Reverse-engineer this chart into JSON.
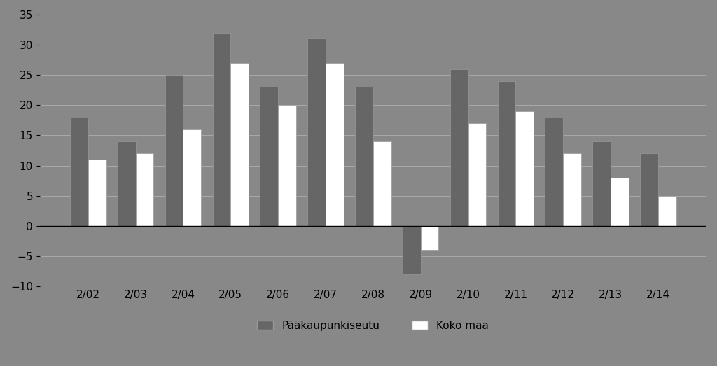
{
  "categories": [
    "2/02",
    "2/03",
    "2/04",
    "2/05",
    "2/06",
    "2/07",
    "2/08",
    "2/09",
    "2/10",
    "2/11",
    "2/12",
    "2/13",
    "2/14"
  ],
  "paakaupunkiseutu": [
    18,
    14,
    25,
    32,
    23,
    31,
    23,
    -8,
    26,
    24,
    18,
    14,
    12
  ],
  "koko_maa": [
    11,
    12,
    16,
    27,
    20,
    27,
    14,
    -4,
    17,
    19,
    12,
    8,
    5
  ],
  "bar_color_paa": "#ffffff",
  "bar_color_koko": "#ffffff",
  "bar_edge_paa": "#000000",
  "bar_edge_koko": "#000000",
  "background_color": "#888888",
  "plot_bg_color": "#888888",
  "grid_color": "#aaaaaa",
  "text_color": "#000000",
  "ylim": [
    -10,
    35
  ],
  "yticks": [
    -10,
    -5,
    0,
    5,
    10,
    15,
    20,
    25,
    30,
    35
  ],
  "legend_label1": "Pääkaupunkiseutu",
  "legend_label2": "Koko maa",
  "legend_color1": "#555555",
  "legend_color2": "#ffffff",
  "bar_width": 0.38,
  "figsize": [
    10.24,
    5.23
  ],
  "dpi": 100
}
